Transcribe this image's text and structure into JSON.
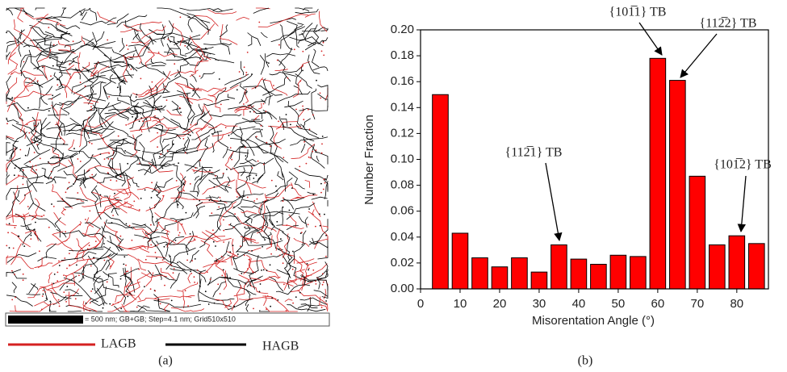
{
  "figure": {
    "scale_bar_text": "= 500 nm; GB+GB; Step=4.1 nm; Grid510x510",
    "legend": [
      {
        "name": "LAGB",
        "color": "#d42020"
      },
      {
        "name": "HAGB",
        "color": "#000000"
      }
    ],
    "panel_labels": [
      "(a)",
      "(b)"
    ]
  },
  "chart_data": {
    "type": "bar",
    "x": [
      5,
      10,
      15,
      20,
      25,
      30,
      35,
      40,
      45,
      50,
      55,
      60,
      65,
      70,
      75,
      80,
      85
    ],
    "values": [
      0.15,
      0.043,
      0.024,
      0.017,
      0.024,
      0.013,
      0.034,
      0.023,
      0.019,
      0.026,
      0.025,
      0.178,
      0.161,
      0.087,
      0.034,
      0.041,
      0.035
    ],
    "color": "#ff0000",
    "xlim": [
      0,
      88
    ],
    "ylim": [
      0,
      0.2
    ],
    "xticks": [
      0,
      10,
      20,
      30,
      40,
      50,
      60,
      70,
      80
    ],
    "yticks": [
      {
        "value": 0,
        "label": "0.00"
      },
      {
        "value": 0.02,
        "label": "0.02"
      },
      {
        "value": 0.04,
        "label": "0.04"
      },
      {
        "value": 0.06,
        "label": "0.06"
      },
      {
        "value": 0.08,
        "label": "0.08"
      },
      {
        "value": 0.1,
        "label": "0.10"
      },
      {
        "value": 0.12,
        "label": "0.12"
      },
      {
        "value": 0.14,
        "label": "0.14"
      },
      {
        "value": 0.16,
        "label": "0.16"
      },
      {
        "value": 0.18,
        "label": "0.18"
      },
      {
        "value": 0.2,
        "label": "0.20"
      }
    ],
    "xlabel": "Misorentation Angle (°)",
    "ylabel": "Number Fraction",
    "annotations": [
      "{101̅1} TB",
      "{112̅2} TB",
      "{112̅1} TB",
      "{101̅2} TB"
    ]
  }
}
